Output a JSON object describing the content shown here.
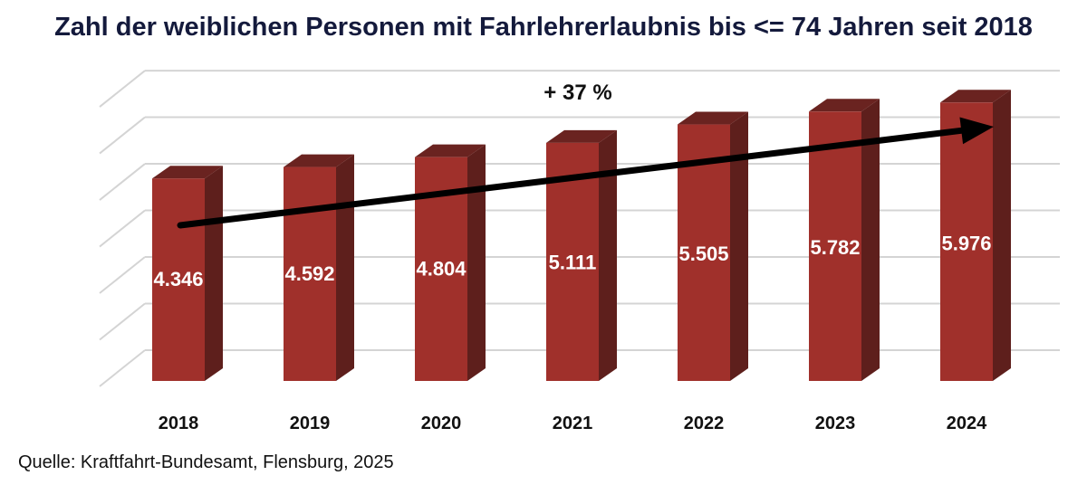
{
  "title": "Zahl der weiblichen Personen mit Fahrlehrerlaubnis bis <= 74 Jahren seit 2018",
  "source": "Quelle: Kraftfahrt-Bundesamt, Flensburg, 2025",
  "chart_data": {
    "type": "bar",
    "categories": [
      "2018",
      "2019",
      "2020",
      "2021",
      "2022",
      "2023",
      "2024"
    ],
    "values": [
      4346,
      4592,
      4804,
      5111,
      5505,
      5782,
      5976
    ],
    "value_labels": [
      "4.346",
      "4.592",
      "4.804",
      "5.111",
      "5.505",
      "5.782",
      "5.976"
    ],
    "ylim": [
      0,
      6500
    ],
    "grid": true,
    "style": "3d",
    "annotation": "+ 37 %",
    "trend_arrow": true,
    "colors": {
      "bar_front": "#a0302b",
      "bar_side": "#5e1f1c",
      "bar_top": "#6a2320",
      "grid": "#d4d4d4",
      "arrow": "#000000",
      "label": "#ffffff"
    }
  }
}
